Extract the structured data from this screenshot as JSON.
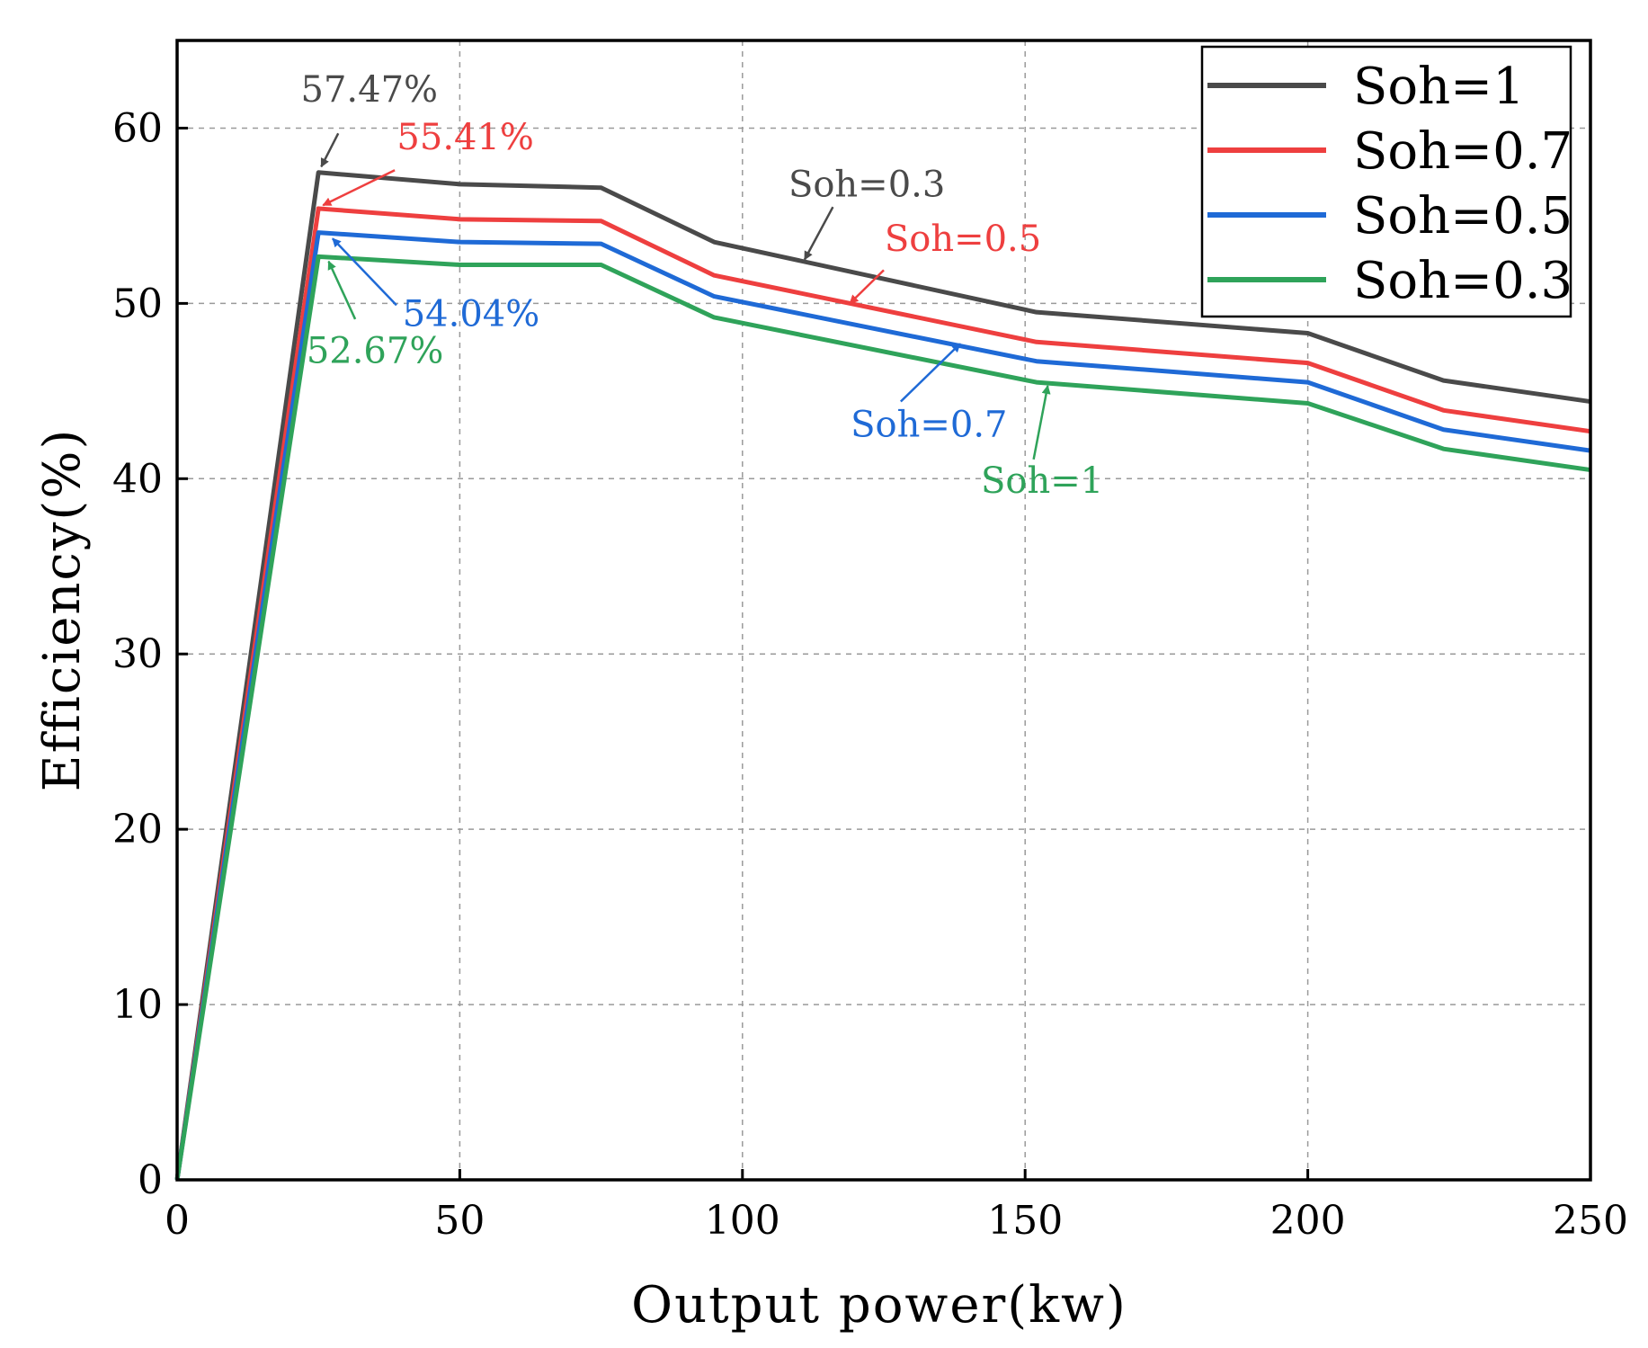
{
  "chart_data": {
    "type": "line",
    "xlabel": "Output power(kw)",
    "ylabel": "Efficiency(%)",
    "xlim": [
      0,
      250
    ],
    "ylim": [
      0,
      65
    ],
    "xticks": [
      0,
      50,
      100,
      150,
      200,
      250
    ],
    "yticks": [
      0,
      10,
      20,
      30,
      40,
      50,
      60
    ],
    "grid": true,
    "legend_position": "top-right",
    "series": [
      {
        "name": "Soh=1",
        "color": "#4a4a4a",
        "x": [
          0,
          25,
          50,
          75,
          95,
          152,
          200,
          224,
          250
        ],
        "y": [
          0,
          57.47,
          56.8,
          56.6,
          53.5,
          49.5,
          48.3,
          45.6,
          44.4
        ]
      },
      {
        "name": "Soh=0.7",
        "color": "#ee3f3f",
        "x": [
          0,
          25,
          50,
          75,
          95,
          152,
          200,
          224,
          250
        ],
        "y": [
          0,
          55.41,
          54.8,
          54.7,
          51.6,
          47.8,
          46.6,
          43.9,
          42.7
        ]
      },
      {
        "name": "Soh=0.5",
        "color": "#1f6ad6",
        "x": [
          0,
          25,
          50,
          75,
          95,
          152,
          200,
          224,
          250
        ],
        "y": [
          0,
          54.04,
          53.5,
          53.4,
          50.4,
          46.7,
          45.5,
          42.8,
          41.6
        ]
      },
      {
        "name": "Soh=0.3",
        "color": "#2fa35a",
        "x": [
          0,
          25,
          50,
          75,
          95,
          152,
          200,
          224,
          250
        ],
        "y": [
          0,
          52.67,
          52.2,
          52.2,
          49.2,
          45.5,
          44.3,
          41.7,
          40.5
        ]
      }
    ],
    "annotations": [
      {
        "text": "57.47%",
        "color": "#4a4a4a",
        "label_at": [
          34,
          61.5
        ],
        "arrow_from": [
          28.5,
          59.7
        ],
        "arrow_to": [
          25.5,
          57.8
        ]
      },
      {
        "text": "55.41%",
        "color": "#ee3f3f",
        "label_at": [
          51,
          58.8
        ],
        "arrow_from": [
          38.5,
          57.6
        ],
        "arrow_to": [
          25.8,
          55.6
        ]
      },
      {
        "text": "54.04%",
        "color": "#1f6ad6",
        "label_at": [
          52,
          48.7
        ],
        "arrow_from": [
          38.8,
          49.9
        ],
        "arrow_to": [
          27.5,
          53.7
        ]
      },
      {
        "text": "52.67%",
        "color": "#2fa35a",
        "label_at": [
          35,
          46.6
        ],
        "arrow_from": [
          31.5,
          49.1
        ],
        "arrow_to": [
          26.8,
          52.4
        ]
      },
      {
        "text": "Soh=0.3",
        "color": "#4a4a4a",
        "label_at": [
          122,
          56.1
        ],
        "arrow_from": [
          116,
          55.5
        ],
        "arrow_to": [
          111,
          52.5
        ]
      },
      {
        "text": "Soh=0.5",
        "color": "#ee3f3f",
        "label_at": [
          139,
          53.0
        ],
        "arrow_from": [
          125,
          51.9
        ],
        "arrow_to": [
          119,
          50.0
        ]
      },
      {
        "text": "Soh=0.7",
        "color": "#1f6ad6",
        "label_at": [
          133,
          42.4
        ],
        "arrow_from": [
          128,
          44.4
        ],
        "arrow_to": [
          138.5,
          47.7
        ]
      },
      {
        "text": "Soh=1",
        "color": "#2fa35a",
        "label_at": [
          153,
          39.2
        ],
        "arrow_from": [
          151.5,
          41.1
        ],
        "arrow_to": [
          154,
          45.3
        ]
      }
    ]
  }
}
